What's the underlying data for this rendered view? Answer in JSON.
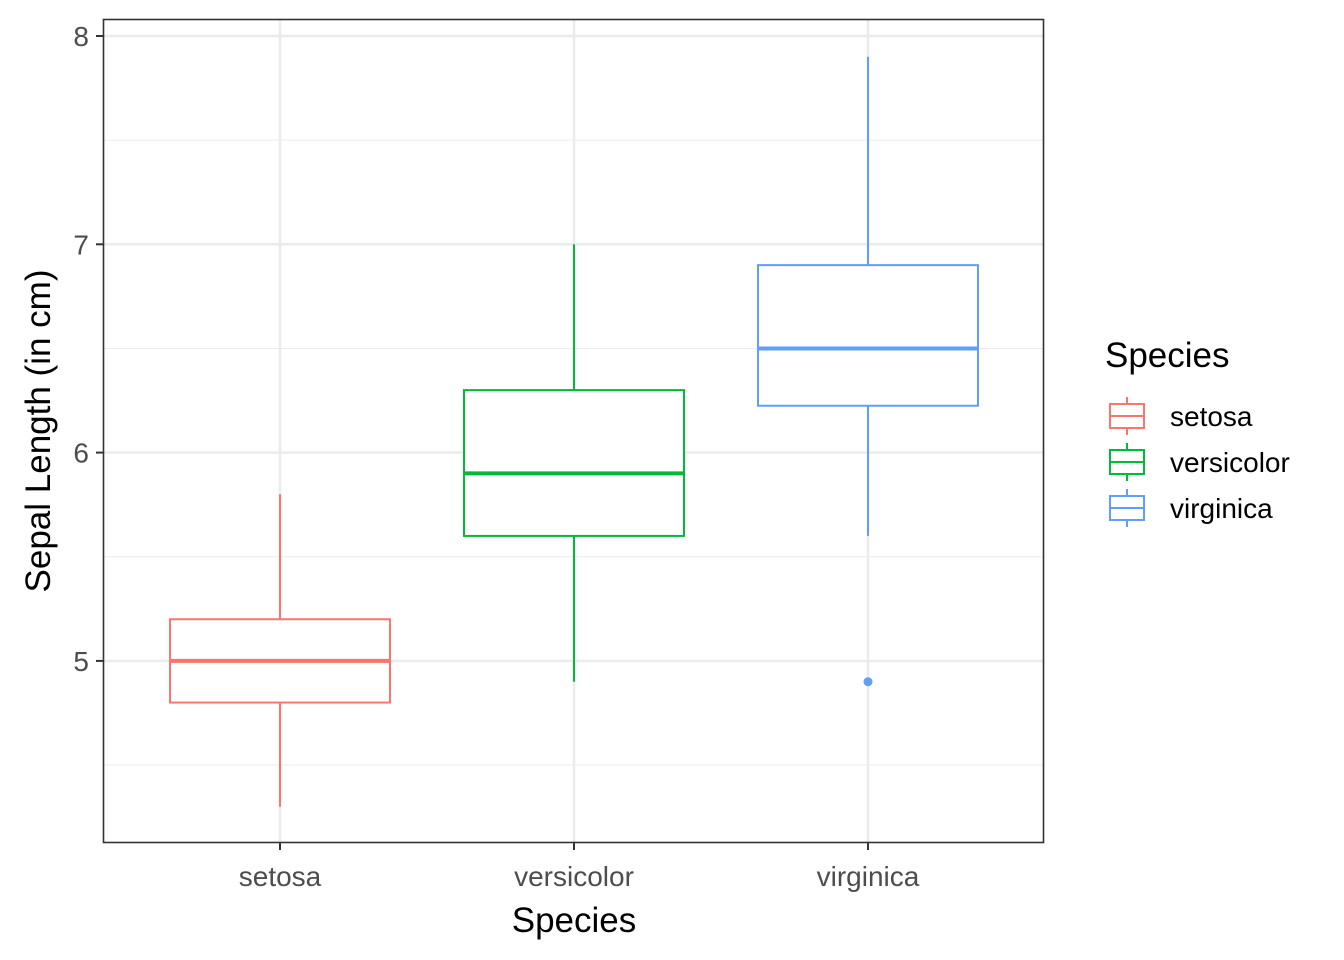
{
  "chart_data": {
    "type": "boxplot",
    "title": "",
    "xlabel": "Species",
    "ylabel": "Sepal Length (in cm)",
    "ylim": [
      4.12,
      8.08
    ],
    "yticks": [
      5,
      6,
      7,
      8
    ],
    "ytick_labels": [
      "5",
      "6",
      "7",
      "8"
    ],
    "categories": [
      "setosa",
      "versicolor",
      "virginica"
    ],
    "grid": true,
    "legend": {
      "title": "Species",
      "position": "right",
      "entries": [
        "setosa",
        "versicolor",
        "virginica"
      ]
    },
    "series": [
      {
        "name": "setosa",
        "color": "#F8766D",
        "min": 4.3,
        "q1": 4.8,
        "median": 5.0,
        "q3": 5.2,
        "max": 5.8,
        "outliers": []
      },
      {
        "name": "versicolor",
        "color": "#00BA38",
        "min": 4.9,
        "q1": 5.6,
        "median": 5.9,
        "q3": 6.3,
        "max": 7.0,
        "outliers": []
      },
      {
        "name": "virginica",
        "color": "#619CFF",
        "min": 5.6,
        "q1": 6.225,
        "median": 6.5,
        "q3": 6.9,
        "max": 7.9,
        "outliers": [
          4.9
        ]
      }
    ]
  }
}
